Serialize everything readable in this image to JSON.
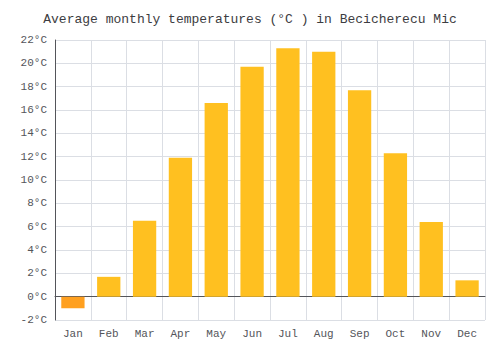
{
  "chart_data": {
    "type": "bar",
    "title": "Average monthly temperatures (°C ) in Becicherecu Mic",
    "categories": [
      "Jan",
      "Feb",
      "Mar",
      "Apr",
      "May",
      "Jun",
      "Jul",
      "Aug",
      "Sep",
      "Oct",
      "Nov",
      "Dec"
    ],
    "values": [
      -1.0,
      1.7,
      6.5,
      11.9,
      16.6,
      19.7,
      21.3,
      21.0,
      17.7,
      12.3,
      6.4,
      1.4
    ],
    "colors": [
      "#FFA020",
      "#FFC020",
      "#FFC020",
      "#FFC020",
      "#FFC020",
      "#FFC020",
      "#FFC020",
      "#FFC020",
      "#FFC020",
      "#FFC020",
      "#FFC020",
      "#FFC020"
    ],
    "ylim": [
      -2,
      22
    ],
    "yticks": [
      {
        "value": -2,
        "label": "-2°C"
      },
      {
        "value": 0,
        "label": "0°C"
      },
      {
        "value": 2,
        "label": "2°C"
      },
      {
        "value": 4,
        "label": "4°C"
      },
      {
        "value": 6,
        "label": "6°C"
      },
      {
        "value": 8,
        "label": "8°C"
      },
      {
        "value": 10,
        "label": "10°C"
      },
      {
        "value": 12,
        "label": "12°C"
      },
      {
        "value": 14,
        "label": "14°C"
      },
      {
        "value": 16,
        "label": "16°C"
      },
      {
        "value": 18,
        "label": "18°C"
      },
      {
        "value": 20,
        "label": "20°C"
      },
      {
        "value": 22,
        "label": "22°C"
      }
    ],
    "grid": true
  }
}
